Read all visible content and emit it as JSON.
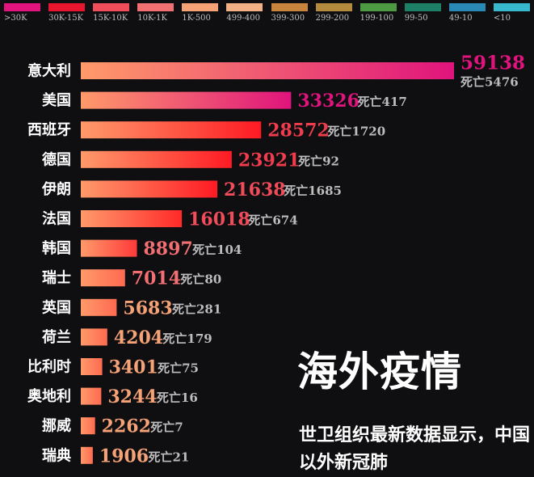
{
  "legend": [
    {
      "label": ">30K",
      "color": "#e0147c"
    },
    {
      "label": "30K-15K",
      "color": "#e8152e"
    },
    {
      "label": "15K-10K",
      "color": "#ef4d5a"
    },
    {
      "label": "10K-1K",
      "color": "#f26f72"
    },
    {
      "label": "1K-500",
      "color": "#f4a276"
    },
    {
      "label": "499-400",
      "color": "#f2b184"
    },
    {
      "label": "399-300",
      "color": "#c8833c"
    },
    {
      "label": "299-200",
      "color": "#b48a3c"
    },
    {
      "label": "199-100",
      "color": "#4e9a43"
    },
    {
      "label": "99-50",
      "color": "#1c7f66"
    },
    {
      "label": "49-10",
      "color": "#2a88b4"
    },
    {
      "label": "<10",
      "color": "#37b8cc"
    }
  ],
  "death_prefix": "死亡",
  "headline": "海外疫情",
  "subtitle": "世卫组织最新数据显示，中国以外新冠肺",
  "chart_data": {
    "type": "bar",
    "orientation": "horizontal",
    "categories": [
      "意大利",
      "美国",
      "西班牙",
      "德国",
      "伊朗",
      "法国",
      "韩国",
      "瑞士",
      "英国",
      "荷兰",
      "比利时",
      "奥地利",
      "挪威",
      "瑞典"
    ],
    "series": [
      {
        "values": [
          59138,
          33326,
          28572,
          23921,
          21638,
          16018,
          8897,
          7014,
          5683,
          4204,
          3401,
          3244,
          2262,
          1906
        ]
      }
    ],
    "deaths": [
      5476,
      417,
      1720,
      92,
      1685,
      674,
      104,
      80,
      281,
      179,
      75,
      16,
      7,
      21
    ],
    "value_colors": [
      "#e0147c",
      "#e0147c",
      "#f03c4c",
      "#f03c4c",
      "#f04c5a",
      "#f04c5a",
      "#f26f72",
      "#f26f72",
      "#f4a276",
      "#f4a276",
      "#f4a276",
      "#f4a276",
      "#f4a276",
      "#f4a276"
    ],
    "bar_colors": [
      "#e0147c",
      "#e0147c",
      "#ff1a24",
      "#ff1a24",
      "#ff1a24",
      "#ff2a2a",
      "#ff3a3a",
      "#ff6a50",
      "#ff6a50",
      "#ff6a50",
      "#ff6a50",
      "#ff6a50",
      "#ff6a50",
      "#ff6a50"
    ]
  }
}
